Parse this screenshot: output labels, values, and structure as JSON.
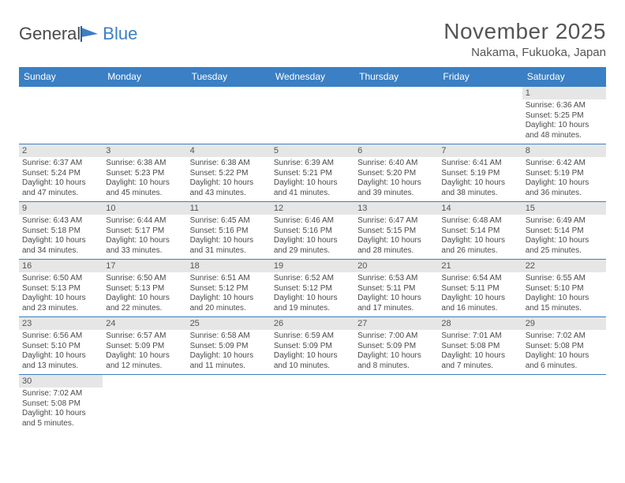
{
  "brand": {
    "part1": "General",
    "part2": "Blue"
  },
  "title": "November 2025",
  "location": "Nakama, Fukuoka, Japan",
  "colors": {
    "header_bg": "#3b7fc4",
    "header_text": "#ffffff",
    "daynum_bg": "#e6e6e6",
    "border": "#3b7fc4",
    "body_text": "#4a4a4a"
  },
  "weekdays": [
    "Sunday",
    "Monday",
    "Tuesday",
    "Wednesday",
    "Thursday",
    "Friday",
    "Saturday"
  ],
  "weeks": [
    [
      null,
      null,
      null,
      null,
      null,
      null,
      {
        "n": "1",
        "sr": "6:36 AM",
        "ss": "5:25 PM",
        "dl": "10 hours and 48 minutes."
      }
    ],
    [
      {
        "n": "2",
        "sr": "6:37 AM",
        "ss": "5:24 PM",
        "dl": "10 hours and 47 minutes."
      },
      {
        "n": "3",
        "sr": "6:38 AM",
        "ss": "5:23 PM",
        "dl": "10 hours and 45 minutes."
      },
      {
        "n": "4",
        "sr": "6:38 AM",
        "ss": "5:22 PM",
        "dl": "10 hours and 43 minutes."
      },
      {
        "n": "5",
        "sr": "6:39 AM",
        "ss": "5:21 PM",
        "dl": "10 hours and 41 minutes."
      },
      {
        "n": "6",
        "sr": "6:40 AM",
        "ss": "5:20 PM",
        "dl": "10 hours and 39 minutes."
      },
      {
        "n": "7",
        "sr": "6:41 AM",
        "ss": "5:19 PM",
        "dl": "10 hours and 38 minutes."
      },
      {
        "n": "8",
        "sr": "6:42 AM",
        "ss": "5:19 PM",
        "dl": "10 hours and 36 minutes."
      }
    ],
    [
      {
        "n": "9",
        "sr": "6:43 AM",
        "ss": "5:18 PM",
        "dl": "10 hours and 34 minutes."
      },
      {
        "n": "10",
        "sr": "6:44 AM",
        "ss": "5:17 PM",
        "dl": "10 hours and 33 minutes."
      },
      {
        "n": "11",
        "sr": "6:45 AM",
        "ss": "5:16 PM",
        "dl": "10 hours and 31 minutes."
      },
      {
        "n": "12",
        "sr": "6:46 AM",
        "ss": "5:16 PM",
        "dl": "10 hours and 29 minutes."
      },
      {
        "n": "13",
        "sr": "6:47 AM",
        "ss": "5:15 PM",
        "dl": "10 hours and 28 minutes."
      },
      {
        "n": "14",
        "sr": "6:48 AM",
        "ss": "5:14 PM",
        "dl": "10 hours and 26 minutes."
      },
      {
        "n": "15",
        "sr": "6:49 AM",
        "ss": "5:14 PM",
        "dl": "10 hours and 25 minutes."
      }
    ],
    [
      {
        "n": "16",
        "sr": "6:50 AM",
        "ss": "5:13 PM",
        "dl": "10 hours and 23 minutes."
      },
      {
        "n": "17",
        "sr": "6:50 AM",
        "ss": "5:13 PM",
        "dl": "10 hours and 22 minutes."
      },
      {
        "n": "18",
        "sr": "6:51 AM",
        "ss": "5:12 PM",
        "dl": "10 hours and 20 minutes."
      },
      {
        "n": "19",
        "sr": "6:52 AM",
        "ss": "5:12 PM",
        "dl": "10 hours and 19 minutes."
      },
      {
        "n": "20",
        "sr": "6:53 AM",
        "ss": "5:11 PM",
        "dl": "10 hours and 17 minutes."
      },
      {
        "n": "21",
        "sr": "6:54 AM",
        "ss": "5:11 PM",
        "dl": "10 hours and 16 minutes."
      },
      {
        "n": "22",
        "sr": "6:55 AM",
        "ss": "5:10 PM",
        "dl": "10 hours and 15 minutes."
      }
    ],
    [
      {
        "n": "23",
        "sr": "6:56 AM",
        "ss": "5:10 PM",
        "dl": "10 hours and 13 minutes."
      },
      {
        "n": "24",
        "sr": "6:57 AM",
        "ss": "5:09 PM",
        "dl": "10 hours and 12 minutes."
      },
      {
        "n": "25",
        "sr": "6:58 AM",
        "ss": "5:09 PM",
        "dl": "10 hours and 11 minutes."
      },
      {
        "n": "26",
        "sr": "6:59 AM",
        "ss": "5:09 PM",
        "dl": "10 hours and 10 minutes."
      },
      {
        "n": "27",
        "sr": "7:00 AM",
        "ss": "5:09 PM",
        "dl": "10 hours and 8 minutes."
      },
      {
        "n": "28",
        "sr": "7:01 AM",
        "ss": "5:08 PM",
        "dl": "10 hours and 7 minutes."
      },
      {
        "n": "29",
        "sr": "7:02 AM",
        "ss": "5:08 PM",
        "dl": "10 hours and 6 minutes."
      }
    ],
    [
      {
        "n": "30",
        "sr": "7:02 AM",
        "ss": "5:08 PM",
        "dl": "10 hours and 5 minutes."
      },
      null,
      null,
      null,
      null,
      null,
      null
    ]
  ],
  "labels": {
    "sunrise": "Sunrise: ",
    "sunset": "Sunset: ",
    "daylight": "Daylight: "
  }
}
